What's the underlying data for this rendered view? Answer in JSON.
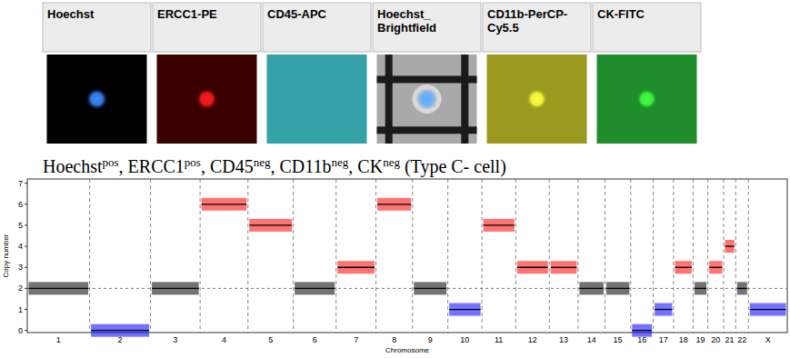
{
  "panels": [
    {
      "label": "Hoechst"
    },
    {
      "label": "ERCC1-PE"
    },
    {
      "label": "CD45-APC"
    },
    {
      "label": "Hoechst_ Brightfield"
    },
    {
      "label": "CD11b-PerCP-Cy5.5"
    },
    {
      "label": "CK-FITC"
    }
  ],
  "caption": [
    {
      "text": "Hoechst"
    },
    {
      "text": "pos",
      "sup": true
    },
    {
      "text": ", ERCC1"
    },
    {
      "text": "pos",
      "sup": true
    },
    {
      "text": ", CD45"
    },
    {
      "text": "neg",
      "sup": true
    },
    {
      "text": ", CD11b"
    },
    {
      "text": "neg",
      "sup": true
    },
    {
      "text": ", CK"
    },
    {
      "text": "neg",
      "sup": true
    },
    {
      "text": " (Type C- cell)"
    }
  ],
  "chart_data": {
    "type": "segments",
    "ylabel": "Copy number",
    "xlabel": "Chromosome",
    "xlim": [
      0,
      3034
    ],
    "ylim": [
      -0.1,
      7.2
    ],
    "yticks": [
      0,
      1,
      2,
      3,
      4,
      5,
      6,
      7
    ],
    "reference_line": 2,
    "chromosomes": [
      {
        "label": "1",
        "start": 0,
        "end": 249,
        "copy_number": 2,
        "color": "#000000"
      },
      {
        "label": "2",
        "start": 249,
        "end": 492,
        "copy_number": 0,
        "color": "#0000ff"
      },
      {
        "label": "3",
        "start": 492,
        "end": 690,
        "copy_number": 2,
        "color": "#000000"
      },
      {
        "label": "4",
        "start": 690,
        "end": 881,
        "copy_number": 6,
        "color": "#ff0000"
      },
      {
        "label": "5",
        "start": 881,
        "end": 1062,
        "copy_number": 5,
        "color": "#ff0000"
      },
      {
        "label": "6",
        "start": 1062,
        "end": 1233,
        "copy_number": 2,
        "color": "#000000"
      },
      {
        "label": "7",
        "start": 1233,
        "end": 1392,
        "copy_number": 3,
        "color": "#ff0000"
      },
      {
        "label": "8",
        "start": 1392,
        "end": 1538,
        "copy_number": 6,
        "color": "#ff0000"
      },
      {
        "label": "9",
        "start": 1538,
        "end": 1679,
        "copy_number": 2,
        "color": "#000000"
      },
      {
        "label": "10",
        "start": 1679,
        "end": 1815,
        "copy_number": 1,
        "color": "#0000ff"
      },
      {
        "label": "11",
        "start": 1815,
        "end": 1950,
        "copy_number": 5,
        "color": "#ff0000"
      },
      {
        "label": "12",
        "start": 1950,
        "end": 2084,
        "copy_number": 3,
        "color": "#ff0000"
      },
      {
        "label": "13",
        "start": 2084,
        "end": 2199,
        "copy_number": 3,
        "color": "#ff0000"
      },
      {
        "label": "14",
        "start": 2199,
        "end": 2306,
        "copy_number": 2,
        "color": "#000000"
      },
      {
        "label": "15",
        "start": 2306,
        "end": 2409,
        "copy_number": 2,
        "color": "#000000"
      },
      {
        "label": "16",
        "start": 2409,
        "end": 2499,
        "copy_number": 0,
        "color": "#0000ff"
      },
      {
        "label": "17",
        "start": 2499,
        "end": 2580,
        "copy_number": 1,
        "color": "#0000ff"
      },
      {
        "label": "18",
        "start": 2580,
        "end": 2658,
        "copy_number": 3,
        "color": "#ff0000"
      },
      {
        "label": "19",
        "start": 2658,
        "end": 2717,
        "copy_number": 2,
        "color": "#000000"
      },
      {
        "label": "20",
        "start": 2717,
        "end": 2780,
        "copy_number": 3,
        "color": "#ff0000"
      },
      {
        "label": "21",
        "start": 2780,
        "end": 2828,
        "copy_number": 4,
        "color": "#ff0000"
      },
      {
        "label": "22",
        "start": 2828,
        "end": 2879,
        "copy_number": 2,
        "color": "#000000"
      },
      {
        "label": "X",
        "start": 2879,
        "end": 3034,
        "copy_number": 1,
        "color": "#0000ff"
      }
    ]
  }
}
